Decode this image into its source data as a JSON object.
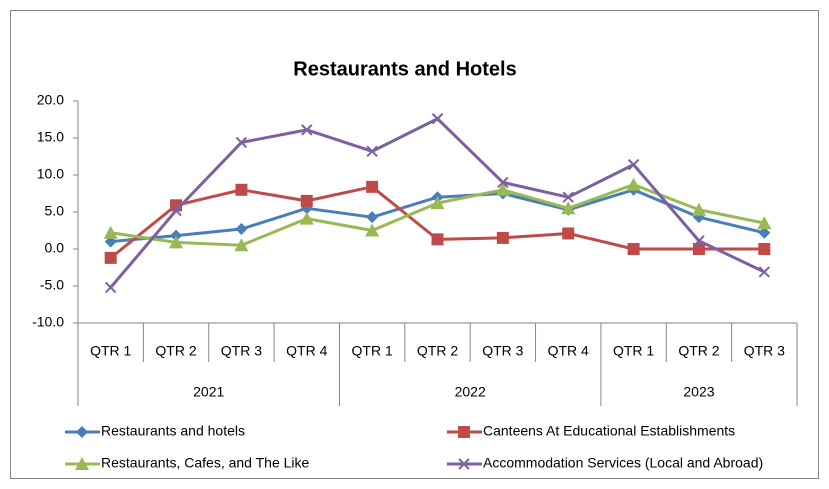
{
  "chart_data": {
    "type": "line",
    "title": "Restaurants and Hotels",
    "category_groups": [
      {
        "label": "2021",
        "categories": [
          "QTR 1",
          "QTR 2",
          "QTR 3",
          "QTR 4"
        ]
      },
      {
        "label": "2022",
        "categories": [
          "QTR 1",
          "QTR 2",
          "QTR 3",
          "QTR 4"
        ]
      },
      {
        "label": "2023",
        "categories": [
          "QTR 1",
          "QTR 2",
          "QTR 3"
        ]
      }
    ],
    "ylim": [
      -10,
      20
    ],
    "yticks": [
      {
        "value": -10,
        "label": "-10.0"
      },
      {
        "value": -5,
        "label": "-5.0"
      },
      {
        "value": 0,
        "label": "0.0"
      },
      {
        "value": 5,
        "label": "5.0"
      },
      {
        "value": 10,
        "label": "10.0"
      },
      {
        "value": 15,
        "label": "15.0"
      },
      {
        "value": 20,
        "label": "20.0"
      }
    ],
    "grid": false,
    "legend": "bottom",
    "series": [
      {
        "name": "Restaurants and hotels",
        "color": "#4a7ebb",
        "marker": "diamond",
        "values": [
          1.0,
          1.8,
          2.7,
          5.5,
          4.3,
          7.0,
          7.5,
          5.3,
          8.0,
          4.3,
          2.2
        ]
      },
      {
        "name": "Canteens At Educational Establishments",
        "color": "#be4b48",
        "marker": "square",
        "values": [
          -1.2,
          5.9,
          8.0,
          6.5,
          8.4,
          1.3,
          1.5,
          2.1,
          0.0,
          0.0,
          0.0
        ]
      },
      {
        "name": "Restaurants, Cafes, and The Like",
        "color": "#98b954",
        "marker": "triangle",
        "values": [
          2.2,
          0.9,
          0.5,
          4.1,
          2.5,
          6.2,
          8.0,
          5.5,
          8.7,
          5.3,
          3.5
        ]
      },
      {
        "name": "Accommodation Services (Local and Abroad)",
        "color": "#7d60a0",
        "marker": "x",
        "values": [
          -5.2,
          5.2,
          14.4,
          16.1,
          13.2,
          17.6,
          9.0,
          7.0,
          11.4,
          1.1,
          -3.1
        ]
      }
    ]
  }
}
